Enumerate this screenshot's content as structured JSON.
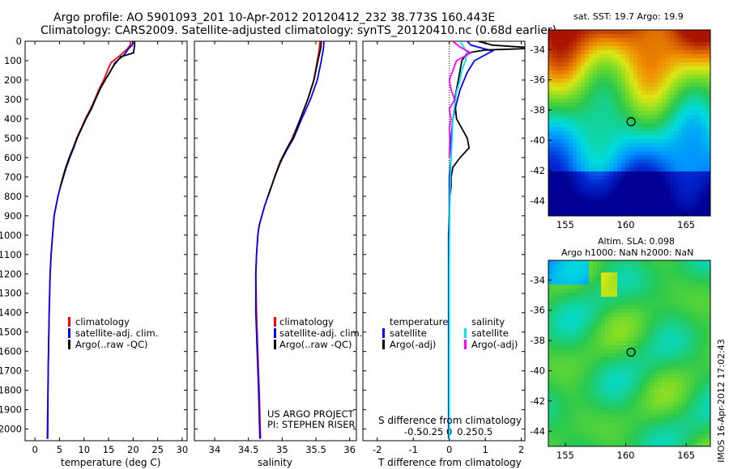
{
  "header": {
    "line1": "Argo profile: AO 5901093_201 10-Apr-2012 20120412_232 38.773S 160.443E",
    "line2": "Climatology: CARS2009. Satellite-adjusted climatology: synTS_20120410.nc (0.68d earlier)"
  },
  "colors": {
    "climatology": "#ff0000",
    "satellite": "#0000ff",
    "argo": "#000000",
    "sal_satellite": "#00e5ee",
    "sal_argo": "#ff00ff"
  },
  "chart_data": [
    {
      "type": "line",
      "xlabel": "temperature (deg C)",
      "xlim": [
        -2,
        31
      ],
      "xticks": [
        0,
        5,
        10,
        15,
        20,
        25,
        30
      ],
      "ylim": [
        2060,
        0
      ],
      "yticks": [
        0,
        100,
        200,
        300,
        400,
        500,
        600,
        700,
        800,
        900,
        1000,
        1100,
        1200,
        1300,
        1400,
        1500,
        1600,
        1700,
        1800,
        1900,
        2000
      ],
      "legend": [
        "climatology",
        "satellite-adj. clim.",
        "Argo(..raw -QC)"
      ],
      "series": [
        {
          "name": "climatology",
          "color": "#ff0000",
          "x": [
            19.5,
            19.4,
            18.8,
            17.5,
            15.5,
            14.8,
            14.0,
            13.0,
            12.2,
            11.3,
            10.3,
            9.4,
            8.5,
            7.8,
            7.0,
            6.3,
            5.7,
            5.2,
            4.7,
            4.3,
            3.9,
            3.6,
            3.3,
            3.1,
            2.9,
            2.7,
            2.5
          ],
          "y": [
            0,
            20,
            40,
            70,
            110,
            150,
            200,
            250,
            300,
            350,
            400,
            450,
            500,
            550,
            600,
            650,
            700,
            750,
            800,
            850,
            900,
            1000,
            1100,
            1200,
            1400,
            1700,
            2050
          ]
        },
        {
          "name": "satellite-adj. clim.",
          "color": "#0000ff",
          "x": [
            20.0,
            19.8,
            19.0,
            18.2,
            16.3,
            15.5,
            14.3,
            13.2,
            12.3,
            11.4,
            10.4,
            9.5,
            8.6,
            7.9,
            7.1,
            6.4,
            5.8,
            5.2,
            4.7,
            4.3,
            3.9,
            3.6,
            3.3,
            3.1,
            2.9,
            2.7,
            2.6
          ],
          "y": [
            0,
            20,
            40,
            70,
            110,
            150,
            200,
            250,
            300,
            350,
            400,
            450,
            500,
            550,
            600,
            650,
            700,
            750,
            800,
            850,
            900,
            1000,
            1100,
            1200,
            1400,
            1700,
            2050
          ]
        },
        {
          "name": "Argo(..raw -QC)",
          "color": "#000000",
          "x": [
            20.3,
            20.3,
            20.2,
            20.1,
            17.5,
            16.2,
            15.0,
            13.6,
            12.5,
            11.5,
            10.4,
            9.5,
            8.6,
            7.8,
            7.0,
            6.3,
            5.7,
            5.2
          ],
          "y": [
            0,
            20,
            40,
            60,
            80,
            120,
            170,
            230,
            290,
            350,
            400,
            450,
            500,
            550,
            600,
            650,
            700,
            750
          ]
        }
      ]
    },
    {
      "type": "line",
      "xlabel": "salinity",
      "xlim": [
        33.7,
        36.1
      ],
      "xticks": [
        34,
        34.5,
        35,
        35.5,
        36
      ],
      "ylim": [
        2060,
        0
      ],
      "legend": [
        "climatology",
        "satellite-adj. clim.",
        "Argo(..raw -QC)"
      ],
      "annotation": [
        "US ARGO PROJECT",
        "PI: STEPHEN RISER"
      ],
      "series": [
        {
          "name": "climatology",
          "color": "#ff0000",
          "x": [
            35.56,
            35.55,
            35.52,
            35.47,
            35.38,
            35.27,
            35.15,
            35.06,
            34.97,
            34.91,
            34.85,
            34.79,
            34.74,
            34.7,
            34.66,
            34.64,
            34.62,
            34.61,
            34.62,
            34.64,
            34.66,
            34.68
          ],
          "y": [
            0,
            40,
            100,
            200,
            300,
            400,
            500,
            560,
            620,
            680,
            740,
            800,
            850,
            900,
            950,
            1000,
            1100,
            1200,
            1400,
            1600,
            1800,
            2050
          ]
        },
        {
          "name": "satellite-adj. clim.",
          "color": "#0000ff",
          "x": [
            35.62,
            35.61,
            35.58,
            35.52,
            35.42,
            35.29,
            35.17,
            35.07,
            34.98,
            34.91,
            34.85,
            34.79,
            34.74,
            34.7,
            34.66,
            34.64,
            34.62,
            34.61,
            34.61,
            34.63,
            34.65,
            34.67
          ],
          "y": [
            0,
            40,
            100,
            200,
            300,
            400,
            500,
            560,
            620,
            680,
            740,
            800,
            850,
            900,
            950,
            1000,
            1100,
            1200,
            1400,
            1600,
            1800,
            2050
          ]
        },
        {
          "name": "Argo(..raw -QC)",
          "color": "#000000",
          "x": [
            35.58,
            35.57,
            35.53,
            35.47,
            35.38,
            35.27,
            35.16,
            35.06,
            34.98,
            34.91,
            34.85,
            34.79
          ],
          "y": [
            0,
            40,
            100,
            200,
            300,
            400,
            500,
            560,
            620,
            680,
            740,
            800
          ]
        }
      ]
    },
    {
      "type": "line",
      "xlabel": "T difference from climatology",
      "xlabel2": "S difference from climatology",
      "xlim": [
        -2.4,
        2.1
      ],
      "xticks": [
        -2,
        -1,
        0,
        1,
        2
      ],
      "xticklabels": [
        "-2",
        "-1",
        "0",
        "1",
        "2"
      ],
      "xticks2": [
        -1.0,
        -0.5,
        0,
        0.5,
        1.0
      ],
      "xticklabels2": [
        "-0.5",
        "-0.25",
        "0",
        "0.25",
        "0.5"
      ],
      "ylim": [
        2060,
        0
      ],
      "legend": {
        "temperature_title": "temperature",
        "salinity_title": "salinity",
        "entries": [
          "satellite",
          "Argo(-adj)",
          "satellite",
          "Argo(-adj)"
        ]
      },
      "series": [
        {
          "name": "satellite",
          "color": "#0000ff",
          "x": [
            0.5,
            0.6,
            1.2,
            0.7,
            0.5,
            0.3,
            0.2,
            0.1,
            0.05,
            0.05,
            0.0,
            0.0,
            0.0,
            -0.02,
            -0.02,
            -0.02,
            -0.02
          ],
          "y": [
            0,
            20,
            50,
            100,
            160,
            250,
            320,
            400,
            500,
            600,
            700,
            800,
            900,
            1000,
            1300,
            1700,
            2050
          ]
        },
        {
          "name": "Argo(-adj)",
          "color": "#000000",
          "x": [
            0.8,
            1.2,
            2.0,
            2.6,
            1.0,
            0.5,
            0.35,
            0.25,
            0.15,
            0.2,
            0.5,
            0.55,
            0.3,
            0.1,
            0.05,
            0.05,
            0.02,
            0.0,
            0.0
          ],
          "y": [
            0,
            20,
            30,
            35,
            45,
            60,
            100,
            200,
            300,
            400,
            500,
            550,
            600,
            650,
            700,
            750,
            800,
            900,
            1000
          ]
        },
        {
          "name": "satellite",
          "color": "#00e5ee",
          "x": [
            0.3,
            0.4,
            0.5,
            0.45,
            0.35,
            0.3,
            0.2,
            0.15,
            0.1,
            0.08,
            0.05,
            0.03,
            0.02,
            0.01,
            0.0,
            0.0,
            0.0
          ],
          "y": [
            0,
            30,
            60,
            100,
            150,
            200,
            260,
            330,
            400,
            500,
            600,
            700,
            800,
            900,
            1100,
            1500,
            2050
          ]
        },
        {
          "name": "Argo(-adj)",
          "color": "#ff00ff",
          "x": [
            0.1,
            0.3,
            0.6,
            0.2,
            0.1,
            0.0,
            0.05,
            0.15,
            0.0,
            0.05,
            0.0,
            0.02,
            0.0
          ],
          "y": [
            0,
            30,
            60,
            100,
            150,
            200,
            250,
            300,
            350,
            400,
            450,
            500,
            600
          ]
        }
      ]
    }
  ],
  "maps": {
    "sst_title": "sat. SST: 19.7  Argo: 19.9",
    "sla_title1": "Altim. SLA: 0.098",
    "sla_title2": "Argo h1000: NaN h2000: NaN",
    "lon_ticks": [
      "155",
      "160",
      "165"
    ],
    "lat_ticks": [
      "-34",
      "-36",
      "-38",
      "-40",
      "-42",
      "-44"
    ],
    "argo_lon": 160.443,
    "argo_lat": -38.773,
    "lon_range": [
      153.6,
      167
    ],
    "lat_range": [
      -45,
      -32.7
    ]
  },
  "imos_stamp": "IMOS 16-Apr-2012 17:02:43"
}
